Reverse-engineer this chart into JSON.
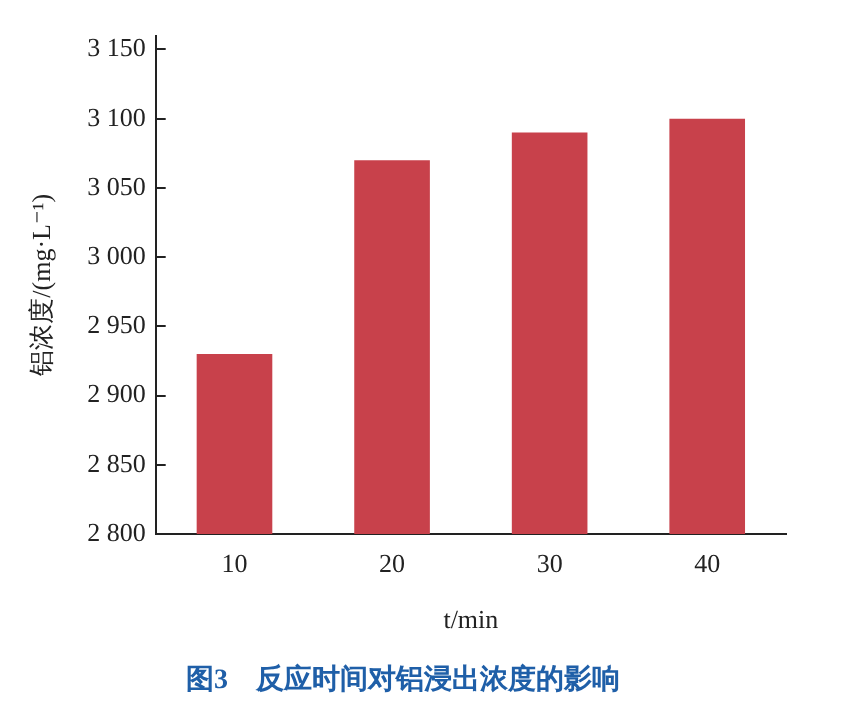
{
  "chart_data": {
    "type": "bar",
    "title": "图3　反应时间对铝浸出浓度的影响",
    "xlabel": "t/min",
    "ylabel": "铝浓度/(mg·L⁻¹)",
    "categories": [
      "10",
      "20",
      "30",
      "40"
    ],
    "values": [
      2930,
      3070,
      3090,
      3100
    ],
    "color": "#c8414b",
    "ylim": [
      2800,
      3160
    ],
    "yticks": [
      {
        "value": 2800,
        "label": "2 800"
      },
      {
        "value": 2850,
        "label": "2 850"
      },
      {
        "value": 2900,
        "label": "2 900"
      },
      {
        "value": 2950,
        "label": "2 950"
      },
      {
        "value": 3000,
        "label": "3 000"
      },
      {
        "value": 3050,
        "label": "3 050"
      },
      {
        "value": 3100,
        "label": "3 100"
      },
      {
        "value": 3150,
        "label": "3 150"
      }
    ],
    "grid": false,
    "legend": false
  }
}
